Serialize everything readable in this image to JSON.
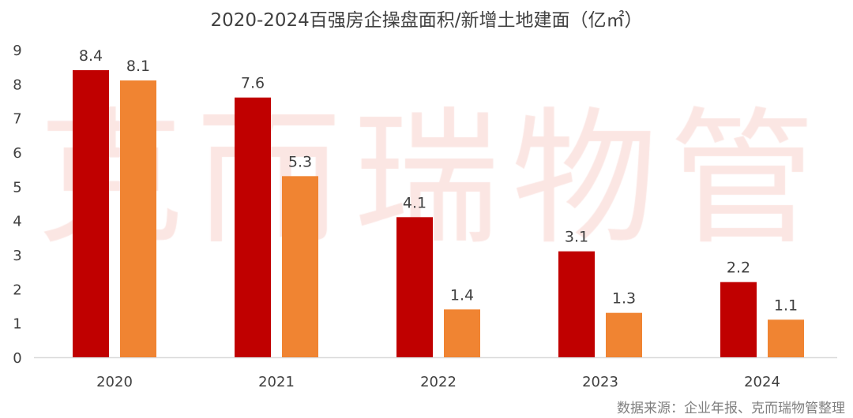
{
  "chart_data": {
    "type": "bar",
    "title": "2020-2024百强房企操盘面积/新增土地建面（亿㎡）",
    "categories": [
      "2020",
      "2021",
      "2022",
      "2023",
      "2024"
    ],
    "series": [
      {
        "values": [
          8.4,
          7.6,
          4.1,
          3.1,
          2.2
        ],
        "color": "#c00000"
      },
      {
        "values": [
          8.1,
          5.3,
          1.4,
          1.3,
          1.1
        ],
        "color": "#f08432"
      }
    ],
    "ylim": [
      0,
      9
    ],
    "yticks": [
      0,
      1,
      2,
      3,
      4,
      5,
      6,
      7,
      8,
      9
    ],
    "xlabel": "",
    "ylabel": "",
    "grid": false,
    "data_labels": true
  },
  "watermark": "克而瑞物管",
  "source": "数据来源：企业年报、克而瑞物管整理"
}
